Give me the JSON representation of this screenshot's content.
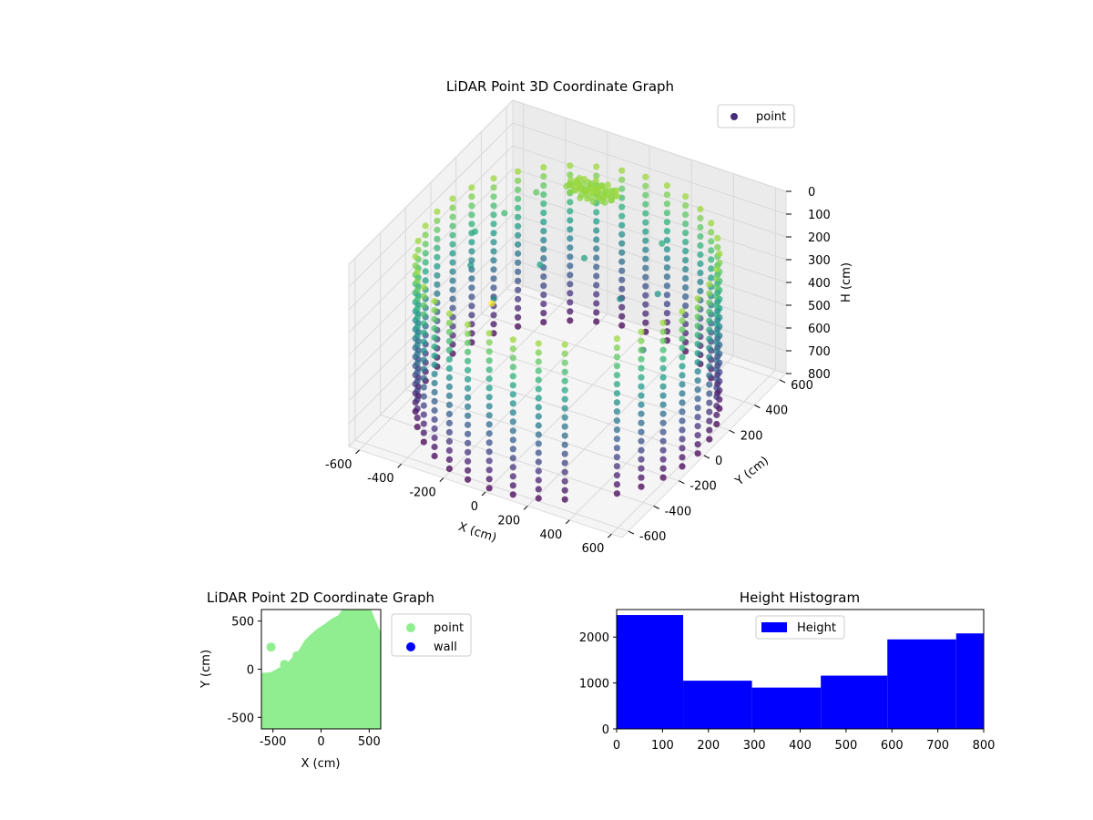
{
  "chart_data": [
    {
      "type": "scatter",
      "title": "LiDAR Point 3D Coordinate Graph",
      "xlabel": "X (cm)",
      "ylabel": "Y (cm)",
      "zlabel": "H (cm)",
      "x_ticks": [
        -600,
        -400,
        -200,
        0,
        200,
        400,
        600
      ],
      "y_ticks": [
        -600,
        -400,
        -200,
        0,
        200,
        400,
        600
      ],
      "z_ticks": [
        0,
        100,
        200,
        300,
        400,
        500,
        600,
        700,
        800
      ],
      "xlim": [
        -650,
        650
      ],
      "ylim": [
        -650,
        650
      ],
      "zlim": [
        0,
        800
      ],
      "z_axis_inverted": true,
      "colormap": "viridis",
      "grid": true,
      "legend": {
        "position": "top-right",
        "entries": [
          {
            "name": "point",
            "color": "#482677"
          }
        ]
      },
      "series": [
        {
          "name": "point",
          "description_points": {
            "wall_ring_radius_cm": 620,
            "wall_height_range_cm": [
              120,
              800
            ],
            "wall_angles_deg": [
              -40,
              -30,
              -20,
              -10,
              0,
              10,
              20,
              30,
              40,
              50,
              60,
              70,
              80,
              90,
              100,
              110,
              120,
              130,
              140,
              150,
              160,
              170,
              180,
              190,
              200,
              210,
              220,
              230,
              240,
              250,
              260,
              270,
              280,
              290,
              300
            ],
            "cluster_center_cm": [
              -150,
              450,
              120
            ],
            "isolated_points": [
              {
                "x": 0,
                "y": -600,
                "h": 0
              },
              {
                "x": -560,
                "y": 200,
                "h": 300
              },
              {
                "x": -520,
                "y": 100,
                "h": 380
              },
              {
                "x": -480,
                "y": 300,
                "h": 250
              },
              {
                "x": -400,
                "y": 420,
                "h": 200
              },
              {
                "x": -350,
                "y": 0,
                "h": 420
              },
              {
                "x": -250,
                "y": 200,
                "h": 350
              },
              {
                "x": -100,
                "y": 300,
                "h": 330
              },
              {
                "x": 100,
                "y": 250,
                "h": 420
              },
              {
                "x": 250,
                "y": 300,
                "h": 380
              },
              {
                "x": 300,
                "y": 100,
                "h": 500
              },
              {
                "x": 150,
                "y": 500,
                "h": 300
              }
            ]
          }
        }
      ]
    },
    {
      "type": "scatter",
      "title": "LiDAR Point 2D Coordinate Graph",
      "xlabel": "X (cm)",
      "ylabel": "Y (cm)",
      "x_ticks": [
        -500,
        0,
        500
      ],
      "y_ticks": [
        -500,
        0,
        500
      ],
      "xlim": [
        -620,
        620
      ],
      "ylim": [
        -620,
        620
      ],
      "legend": {
        "position": "outside-right",
        "entries": [
          {
            "name": "point",
            "color": "#90ee90"
          },
          {
            "name": "wall",
            "color": "#0000ff"
          }
        ]
      },
      "series": [
        {
          "name": "point",
          "color": "#90ee90",
          "filled_region_outline": [
            [
              -620,
              -620
            ],
            [
              620,
              -620
            ],
            [
              620,
              380
            ],
            [
              520,
              620
            ],
            [
              220,
              620
            ],
            [
              180,
              560
            ],
            [
              100,
              520
            ],
            [
              40,
              470
            ],
            [
              -40,
              420
            ],
            [
              -110,
              360
            ],
            [
              -170,
              300
            ],
            [
              -230,
              200
            ],
            [
              -300,
              120
            ],
            [
              -360,
              60
            ],
            [
              -430,
              20
            ],
            [
              -520,
              -30
            ],
            [
              -620,
              -40
            ]
          ],
          "extra_points": [
            [
              -520,
              230
            ],
            [
              -250,
              140
            ],
            [
              -380,
              50
            ],
            [
              -320,
              10
            ]
          ]
        },
        {
          "name": "wall",
          "color": "#0000ff",
          "x": [],
          "y": []
        }
      ]
    },
    {
      "type": "bar",
      "title": "Height Histogram",
      "xlabel": "",
      "ylabel": "",
      "x_ticks": [
        0,
        100,
        200,
        300,
        400,
        500,
        600,
        700,
        800
      ],
      "y_ticks": [
        0,
        1000,
        2000
      ],
      "xlim": [
        0,
        800
      ],
      "ylim": [
        0,
        2600
      ],
      "legend": {
        "position": "upper-center",
        "entries": [
          {
            "name": "Height",
            "color": "#0000ff"
          }
        ]
      },
      "series": [
        {
          "name": "Height",
          "color": "#0000ff",
          "bin_edges": [
            0,
            145,
            295,
            445,
            590,
            740,
            800
          ],
          "counts": [
            2480,
            1050,
            900,
            1160,
            1950,
            2080
          ]
        }
      ]
    }
  ]
}
